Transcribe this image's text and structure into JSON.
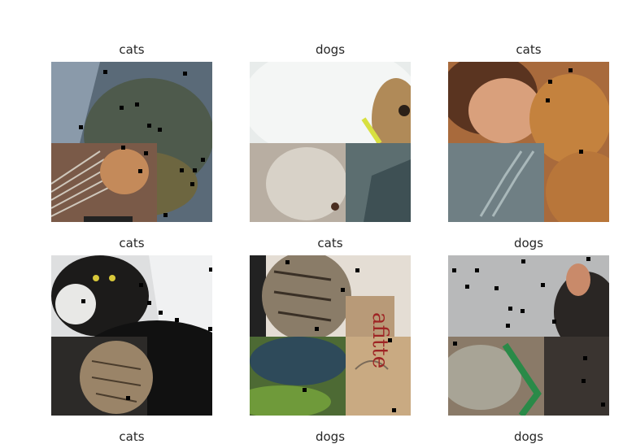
{
  "grid": {
    "rows": [
      [
        {
          "label": "cats",
          "image": "cat-dog-augmented-photo"
        },
        {
          "label": "dogs",
          "image": "white-dog-augmented-photo"
        },
        {
          "label": "cats",
          "image": "girl-with-cat-augmented-photo"
        }
      ],
      [
        {
          "label": "cats",
          "image": "black-white-cat-augmented-photo"
        },
        {
          "label": "cats",
          "image": "tabby-cat-augmented-photo"
        },
        {
          "label": "dogs",
          "image": "dog-paw-augmented-photo"
        }
      ],
      [
        {
          "label": "cats"
        },
        {
          "label": "dogs"
        },
        {
          "label": "dogs"
        }
      ]
    ]
  }
}
